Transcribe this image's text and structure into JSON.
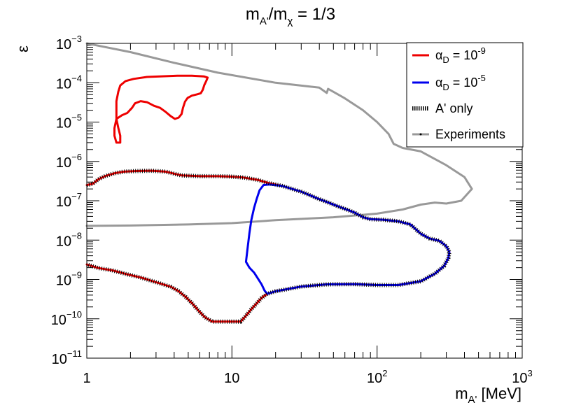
{
  "chart_data": {
    "type": "line",
    "title": "m_A'/m_χ = 1/3",
    "title_parts": {
      "m1": "m",
      "sub1": "A'",
      "slash": "/m",
      "sub2": "χ",
      "rest": " = 1/3"
    },
    "xlabel": "m_A' [MeV]",
    "xlabel_parts": {
      "m": "m",
      "sub": "A'",
      "unit": " [MeV]"
    },
    "ylabel": "ε",
    "xscale": "log",
    "yscale": "log",
    "xlim": [
      1,
      1000
    ],
    "ylim": [
      1e-11,
      0.001
    ],
    "x_ticks": [
      {
        "value": 1,
        "base": "1",
        "exp": ""
      },
      {
        "value": 10,
        "base": "10",
        "exp": ""
      },
      {
        "value": 100,
        "base": "10",
        "exp": "2"
      },
      {
        "value": 1000,
        "base": "10",
        "exp": "3"
      }
    ],
    "y_ticks": [
      {
        "value": 0.001,
        "base": "10",
        "exp": "−3"
      },
      {
        "value": 0.0001,
        "base": "10",
        "exp": "−4"
      },
      {
        "value": 1e-05,
        "base": "10",
        "exp": "−5"
      },
      {
        "value": 1e-06,
        "base": "10",
        "exp": "−6"
      },
      {
        "value": 1e-07,
        "base": "10",
        "exp": "−7"
      },
      {
        "value": 1e-08,
        "base": "10",
        "exp": "−8"
      },
      {
        "value": 1e-09,
        "base": "10",
        "exp": "−9"
      },
      {
        "value": 1e-10,
        "base": "10",
        "exp": "−10"
      },
      {
        "value": 1e-11,
        "base": "10",
        "exp": "−11"
      }
    ],
    "legend": {
      "placement": "top-right",
      "entries": [
        {
          "series": "alphaD_1e-9",
          "symbol": "α",
          "sub": "D",
          "mid": " = 10",
          "exp": "-9"
        },
        {
          "series": "alphaD_1e-5",
          "symbol": "α",
          "sub": "D",
          "mid": " = 10",
          "exp": "-5"
        },
        {
          "series": "aprime_only",
          "text": "A' only"
        },
        {
          "series": "experiments",
          "text": "Experiments"
        }
      ]
    },
    "series": [
      {
        "name": "alphaD_1e-9",
        "color": "#ee0000",
        "style": "solid",
        "segments": [
          [
            [
              1.6,
              3e-06
            ],
            [
              1.55,
              4.5e-06
            ],
            [
              1.55,
              7e-06
            ],
            [
              1.6,
              1.2e-05
            ],
            [
              1.75,
              1.5e-05
            ],
            [
              1.9,
              1.7e-05
            ],
            [
              2.05,
              2.3e-05
            ],
            [
              2.15,
              3e-05
            ],
            [
              2.35,
              3.4e-05
            ],
            [
              2.6,
              3.2e-05
            ],
            [
              2.9,
              2.6e-05
            ],
            [
              3.2,
              2.3e-05
            ],
            [
              3.5,
              1.8e-05
            ],
            [
              3.8,
              1.4e-05
            ],
            [
              4.05,
              1.2e-05
            ],
            [
              4.3,
              1.3e-05
            ],
            [
              4.5,
              1.6e-05
            ],
            [
              4.6,
              2.3e-05
            ],
            [
              4.75,
              3.3e-05
            ],
            [
              4.95,
              4.1e-05
            ],
            [
              5.3,
              4.7e-05
            ],
            [
              5.8,
              5.1e-05
            ],
            [
              6.1,
              5.4e-05
            ],
            [
              6.3,
              6.6e-05
            ],
            [
              6.45,
              8.7e-05
            ],
            [
              6.65,
              0.00011
            ],
            [
              6.8,
              0.000135
            ],
            [
              6.4,
              0.000145
            ],
            [
              5.3,
              0.00015
            ],
            [
              4.2,
              0.00015
            ],
            [
              3.2,
              0.000145
            ],
            [
              2.6,
              0.00014
            ],
            [
              2.1,
              0.000125
            ],
            [
              1.85,
              0.00011
            ],
            [
              1.7,
              8.5e-05
            ],
            [
              1.65,
              6e-05
            ],
            [
              1.6,
              3.4e-05
            ],
            [
              1.6,
              1.2e-05
            ],
            [
              1.65,
              7e-06
            ],
            [
              1.7,
              4.5e-06
            ],
            [
              1.7,
              3e-06
            ],
            [
              1.6,
              3e-06
            ]
          ],
          [
            [
              1,
              2.5e-07
            ],
            [
              1.1,
              2.7e-07
            ],
            [
              1.2,
              3.5e-07
            ],
            [
              1.35,
              4.3e-07
            ],
            [
              1.55,
              5e-07
            ],
            [
              1.8,
              5.5e-07
            ],
            [
              2.2,
              5.7e-07
            ],
            [
              2.8,
              5.8e-07
            ],
            [
              3.5,
              5.5e-07
            ],
            [
              4.5,
              4.4e-07
            ],
            [
              6,
              4.2e-07
            ],
            [
              8,
              4.2e-07
            ],
            [
              10,
              4.1e-07
            ],
            [
              12,
              3.9e-07
            ],
            [
              15,
              3.4e-07
            ],
            [
              18,
              2.8e-07
            ],
            [
              22,
              2.4e-07
            ]
          ],
          [
            [
              1,
              2.4e-09
            ],
            [
              1.2,
              1.95e-09
            ],
            [
              1.5,
              1.7e-09
            ],
            [
              1.9,
              1.35e-09
            ],
            [
              2.4,
              1.1e-09
            ],
            [
              3,
              8.5e-10
            ],
            [
              3.8,
              6.5e-10
            ],
            [
              4.3,
              5e-10
            ],
            [
              4.8,
              3.6e-10
            ],
            [
              5.3,
              2.5e-10
            ],
            [
              5.9,
              1.6e-10
            ],
            [
              6.5,
              1.1e-10
            ],
            [
              7.3,
              8.5e-11
            ],
            [
              8.5,
              8.5e-11
            ],
            [
              10,
              8.5e-11
            ],
            [
              11.5,
              8.5e-11
            ],
            [
              12.5,
              1.2e-10
            ],
            [
              13.5,
              1.7e-10
            ],
            [
              15,
              2.6e-10
            ],
            [
              16,
              3.4e-10
            ],
            [
              17.5,
              4.3e-10
            ],
            [
              20,
              5e-10
            ],
            [
              30,
              6.6e-10
            ],
            [
              45,
              7.5e-10
            ],
            [
              70,
              7.6e-10
            ],
            [
              100,
              7.2e-10
            ],
            [
              140,
              7.2e-10
            ],
            [
              200,
              9e-10
            ],
            [
              250,
              1.4e-09
            ],
            [
              290,
              2.2e-09
            ],
            [
              310,
              3.5e-09
            ],
            [
              315,
              5e-09
            ],
            [
              300,
              7e-09
            ],
            [
              270,
              9.5e-09
            ],
            [
              230,
              1.1e-08
            ],
            [
              200,
              1.45e-08
            ],
            [
              170,
              2.5e-08
            ],
            [
              140,
              3e-08
            ],
            [
              110,
              3.3e-08
            ],
            [
              90,
              3.4e-08
            ],
            [
              80,
              3.8e-08
            ],
            [
              70,
              5e-08
            ],
            [
              55,
              7e-08
            ],
            [
              40,
              1.1e-07
            ],
            [
              30,
              1.7e-07
            ],
            [
              22,
              2.4e-07
            ]
          ]
        ]
      },
      {
        "name": "alphaD_1e-5",
        "color": "#0000ee",
        "style": "solid",
        "segments": [
          [
            [
              16.5,
              2.5e-07
            ],
            [
              15.5,
              1.85e-07
            ],
            [
              14.8,
              1.1e-07
            ],
            [
              14.2,
              6.5e-08
            ],
            [
              13.6,
              3.2e-08
            ],
            [
              13.2,
              1.5e-08
            ],
            [
              12.8,
              6e-09
            ],
            [
              12.5,
              2.8e-09
            ],
            [
              13.2,
              2e-09
            ],
            [
              14.2,
              1.5e-09
            ],
            [
              15,
              1.1e-09
            ],
            [
              16,
              7.5e-10
            ],
            [
              16.8,
              5.2e-10
            ],
            [
              17.5,
              4.3e-10
            ],
            [
              20,
              5e-10
            ],
            [
              30,
              6.6e-10
            ],
            [
              45,
              7.5e-10
            ],
            [
              70,
              7.6e-10
            ],
            [
              100,
              7.2e-10
            ],
            [
              140,
              7.2e-10
            ],
            [
              200,
              9e-10
            ],
            [
              250,
              1.4e-09
            ],
            [
              290,
              2.2e-09
            ],
            [
              310,
              3.5e-09
            ],
            [
              315,
              5e-09
            ],
            [
              300,
              7e-09
            ],
            [
              270,
              9.5e-09
            ],
            [
              230,
              1.1e-08
            ],
            [
              200,
              1.45e-08
            ],
            [
              170,
              2.5e-08
            ],
            [
              140,
              3e-08
            ],
            [
              110,
              3.3e-08
            ],
            [
              90,
              3.4e-08
            ],
            [
              80,
              3.8e-08
            ],
            [
              70,
              5e-08
            ],
            [
              55,
              7e-08
            ],
            [
              40,
              1.1e-07
            ],
            [
              30,
              1.7e-07
            ],
            [
              22,
              2.4e-07
            ],
            [
              18,
              2.6e-07
            ],
            [
              16.5,
              2.5e-07
            ]
          ]
        ]
      },
      {
        "name": "aprime_only",
        "color": "#000000",
        "style": "hatched",
        "segments": [
          [
            [
              1,
              2.5e-07
            ],
            [
              1.1,
              2.7e-07
            ],
            [
              1.2,
              3.5e-07
            ],
            [
              1.35,
              4.3e-07
            ],
            [
              1.55,
              5e-07
            ],
            [
              1.8,
              5.5e-07
            ],
            [
              2.2,
              5.7e-07
            ],
            [
              2.8,
              5.8e-07
            ],
            [
              3.5,
              5.5e-07
            ],
            [
              4.5,
              4.4e-07
            ],
            [
              6,
              4.2e-07
            ],
            [
              8,
              4.2e-07
            ],
            [
              10,
              4.1e-07
            ],
            [
              12,
              3.9e-07
            ],
            [
              15,
              3.4e-07
            ],
            [
              18,
              2.8e-07
            ],
            [
              22,
              2.4e-07
            ],
            [
              30,
              1.7e-07
            ],
            [
              40,
              1.1e-07
            ],
            [
              55,
              7e-08
            ],
            [
              70,
              5e-08
            ],
            [
              80,
              3.8e-08
            ],
            [
              90,
              3.4e-08
            ],
            [
              110,
              3.3e-08
            ],
            [
              140,
              3e-08
            ],
            [
              170,
              2.5e-08
            ],
            [
              200,
              1.45e-08
            ],
            [
              230,
              1.1e-08
            ],
            [
              270,
              9.5e-09
            ],
            [
              300,
              7e-09
            ],
            [
              315,
              5e-09
            ],
            [
              310,
              3.5e-09
            ],
            [
              290,
              2.2e-09
            ],
            [
              250,
              1.4e-09
            ],
            [
              200,
              9e-10
            ],
            [
              140,
              7.2e-10
            ],
            [
              100,
              7.2e-10
            ],
            [
              70,
              7.6e-10
            ],
            [
              45,
              7.5e-10
            ],
            [
              30,
              6.6e-10
            ],
            [
              20,
              5e-10
            ],
            [
              17.5,
              4.3e-10
            ],
            [
              16,
              3.4e-10
            ],
            [
              15,
              2.6e-10
            ],
            [
              13.5,
              1.7e-10
            ],
            [
              12.5,
              1.2e-10
            ],
            [
              11.5,
              8.5e-11
            ],
            [
              10,
              8.5e-11
            ],
            [
              8.5,
              8.5e-11
            ],
            [
              7.3,
              8.5e-11
            ],
            [
              6.5,
              1.1e-10
            ],
            [
              5.9,
              1.6e-10
            ],
            [
              5.3,
              2.5e-10
            ],
            [
              4.8,
              3.6e-10
            ],
            [
              4.3,
              5e-10
            ],
            [
              3.8,
              6.5e-10
            ],
            [
              3,
              8.5e-10
            ],
            [
              2.4,
              1.1e-09
            ],
            [
              1.9,
              1.35e-09
            ],
            [
              1.5,
              1.7e-09
            ],
            [
              1.2,
              1.95e-09
            ],
            [
              1,
              2.4e-09
            ]
          ]
        ]
      },
      {
        "name": "experiments",
        "color": "#999999",
        "style": "solid",
        "segments": [
          [
            [
              1,
              0.001
            ],
            [
              2,
              0.0006
            ],
            [
              4,
              0.00032
            ],
            [
              8,
              0.00018
            ],
            [
              20,
              0.0001
            ],
            [
              40,
              7.5e-05
            ],
            [
              45,
              5.5e-05
            ],
            [
              46,
              7e-05
            ],
            [
              60,
              4e-05
            ],
            [
              80,
              2e-05
            ],
            [
              100,
              1e-05
            ],
            [
              120,
              5e-06
            ],
            [
              130,
              2.8e-06
            ],
            [
              150,
              2.2e-06
            ],
            [
              200,
              1.8e-06
            ],
            [
              300,
              8e-07
            ],
            [
              400,
              4e-07
            ],
            [
              450,
              2e-07
            ],
            [
              380,
              1e-07
            ],
            [
              300,
              8.5e-08
            ],
            [
              250,
              9e-08
            ],
            [
              200,
              8e-08
            ],
            [
              150,
              6e-08
            ],
            [
              100,
              4.7e-08
            ],
            [
              50,
              3.8e-08
            ],
            [
              20,
              3.2e-08
            ],
            [
              10,
              2.7e-08
            ],
            [
              5,
              2.5e-08
            ],
            [
              2,
              2.35e-08
            ],
            [
              1,
              2.3e-08
            ]
          ]
        ]
      }
    ]
  }
}
